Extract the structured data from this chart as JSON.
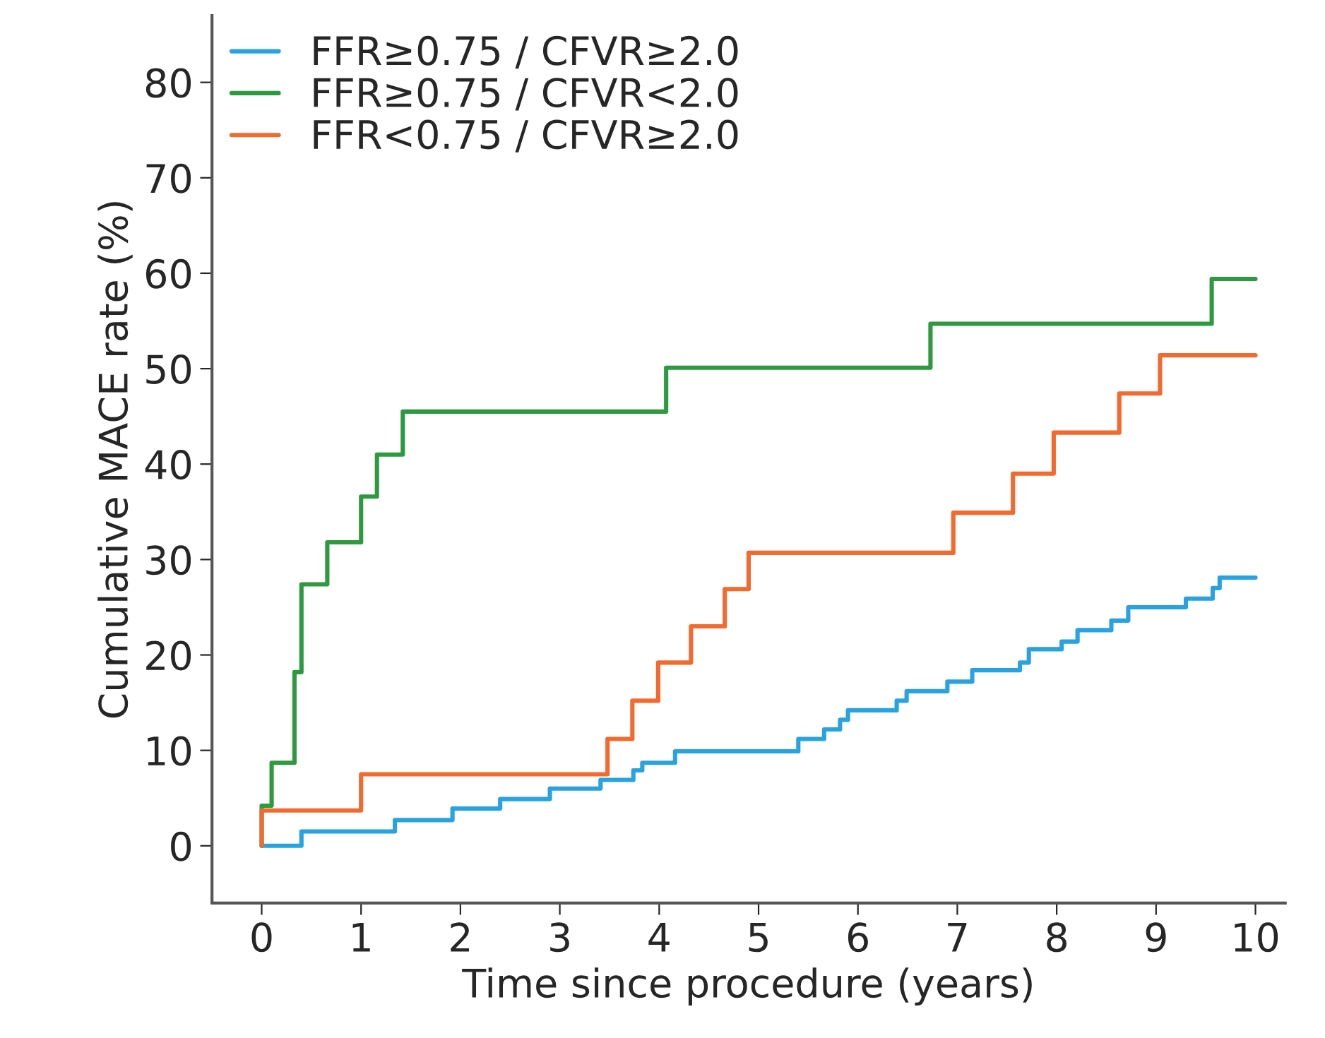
{
  "chart_data": {
    "type": "step",
    "xlabel": "Time since procedure (years)",
    "ylabel": "Cumulative MACE rate (%)",
    "xlim": [
      -0.5,
      10.3
    ],
    "ylim": [
      -6,
      87
    ],
    "xticks": [
      0,
      1,
      2,
      3,
      4,
      5,
      6,
      7,
      8,
      9,
      10
    ],
    "yticks": [
      0,
      10,
      20,
      30,
      40,
      50,
      60,
      70,
      80
    ],
    "grid": false,
    "legend": "top left",
    "line_style": "solid",
    "marker": "none",
    "series": [
      {
        "name": "FFR≥0.75 / CFVR≥2.0",
        "color": "#29a3e0",
        "x": [
          0,
          0.4,
          1.34,
          1.92,
          2.4,
          2.9,
          3.41,
          3.74,
          3.83,
          4.16,
          5.4,
          5.66,
          5.82,
          5.9,
          6.39,
          6.49,
          6.9,
          7.15,
          7.63,
          7.72,
          8.05,
          8.21,
          8.55,
          8.72,
          9.3,
          9.57,
          9.64,
          10
        ],
        "values": [
          0,
          1.5,
          2.7,
          3.9,
          4.9,
          6.0,
          6.9,
          7.9,
          8.7,
          9.9,
          11.2,
          12.2,
          13.2,
          14.2,
          15.2,
          16.2,
          17.2,
          18.4,
          19.2,
          20.6,
          21.4,
          22.6,
          23.6,
          25.0,
          25.9,
          27.0,
          28.1,
          28.1
        ]
      },
      {
        "name": "FFR≥0.75 / CFVR<2.0",
        "color": "#2e9a3f",
        "x": [
          0,
          0,
          0.1,
          0.33,
          0.4,
          0.66,
          1.0,
          1.16,
          1.42,
          4.07,
          6.73,
          9.56,
          10
        ],
        "values": [
          0,
          4.2,
          8.7,
          18.2,
          27.4,
          31.8,
          36.6,
          41.0,
          45.5,
          50.1,
          54.7,
          59.4,
          59.4
        ]
      },
      {
        "name": "FFR<0.75 / CFVR≥2.0",
        "color": "#f26a2e",
        "x": [
          0,
          0,
          1.0,
          3.48,
          3.73,
          3.99,
          4.32,
          4.66,
          4.9,
          6.96,
          7.56,
          7.97,
          8.63,
          9.04,
          10
        ],
        "values": [
          0,
          3.7,
          7.5,
          11.2,
          15.2,
          19.2,
          23.0,
          26.9,
          30.7,
          34.9,
          39.0,
          43.3,
          47.4,
          51.4,
          51.4
        ]
      }
    ]
  }
}
